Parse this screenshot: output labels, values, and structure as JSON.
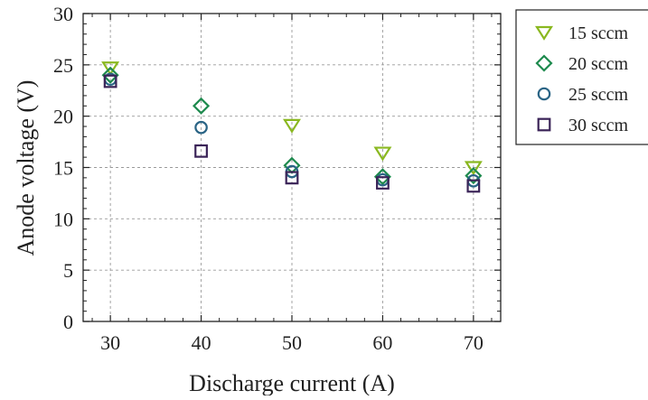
{
  "chart_data": {
    "type": "scatter",
    "title": "",
    "xlabel": "Discharge current (A)",
    "ylabel": "Anode voltage (V)",
    "xlim": [
      27,
      73
    ],
    "ylim": [
      0,
      30
    ],
    "xticks": [
      30,
      40,
      50,
      60,
      70
    ],
    "yticks": [
      0,
      5,
      10,
      15,
      20,
      25,
      30
    ],
    "grid": true,
    "legend_position": "outside-right-top",
    "series": [
      {
        "name": "15 sccm",
        "marker": "triangle-down",
        "color": "#8ab820",
        "x": [
          30,
          40,
          50,
          60,
          70
        ],
        "y": [
          24.7,
          null,
          19.1,
          16.4,
          15.0
        ]
      },
      {
        "name": "20 sccm",
        "marker": "diamond",
        "color": "#1e8a4e",
        "x": [
          30,
          40,
          50,
          60,
          70
        ],
        "y": [
          24.0,
          21.0,
          15.2,
          14.1,
          14.2
        ]
      },
      {
        "name": "25 sccm",
        "marker": "circle",
        "color": "#2a6485",
        "x": [
          30,
          40,
          50,
          60,
          70
        ],
        "y": [
          23.6,
          18.9,
          14.6,
          13.8,
          13.7
        ]
      },
      {
        "name": "30 sccm",
        "marker": "square",
        "color": "#3b2458",
        "x": [
          30,
          40,
          50,
          60,
          70
        ],
        "y": [
          23.4,
          16.6,
          14.0,
          13.5,
          13.2
        ]
      }
    ]
  }
}
